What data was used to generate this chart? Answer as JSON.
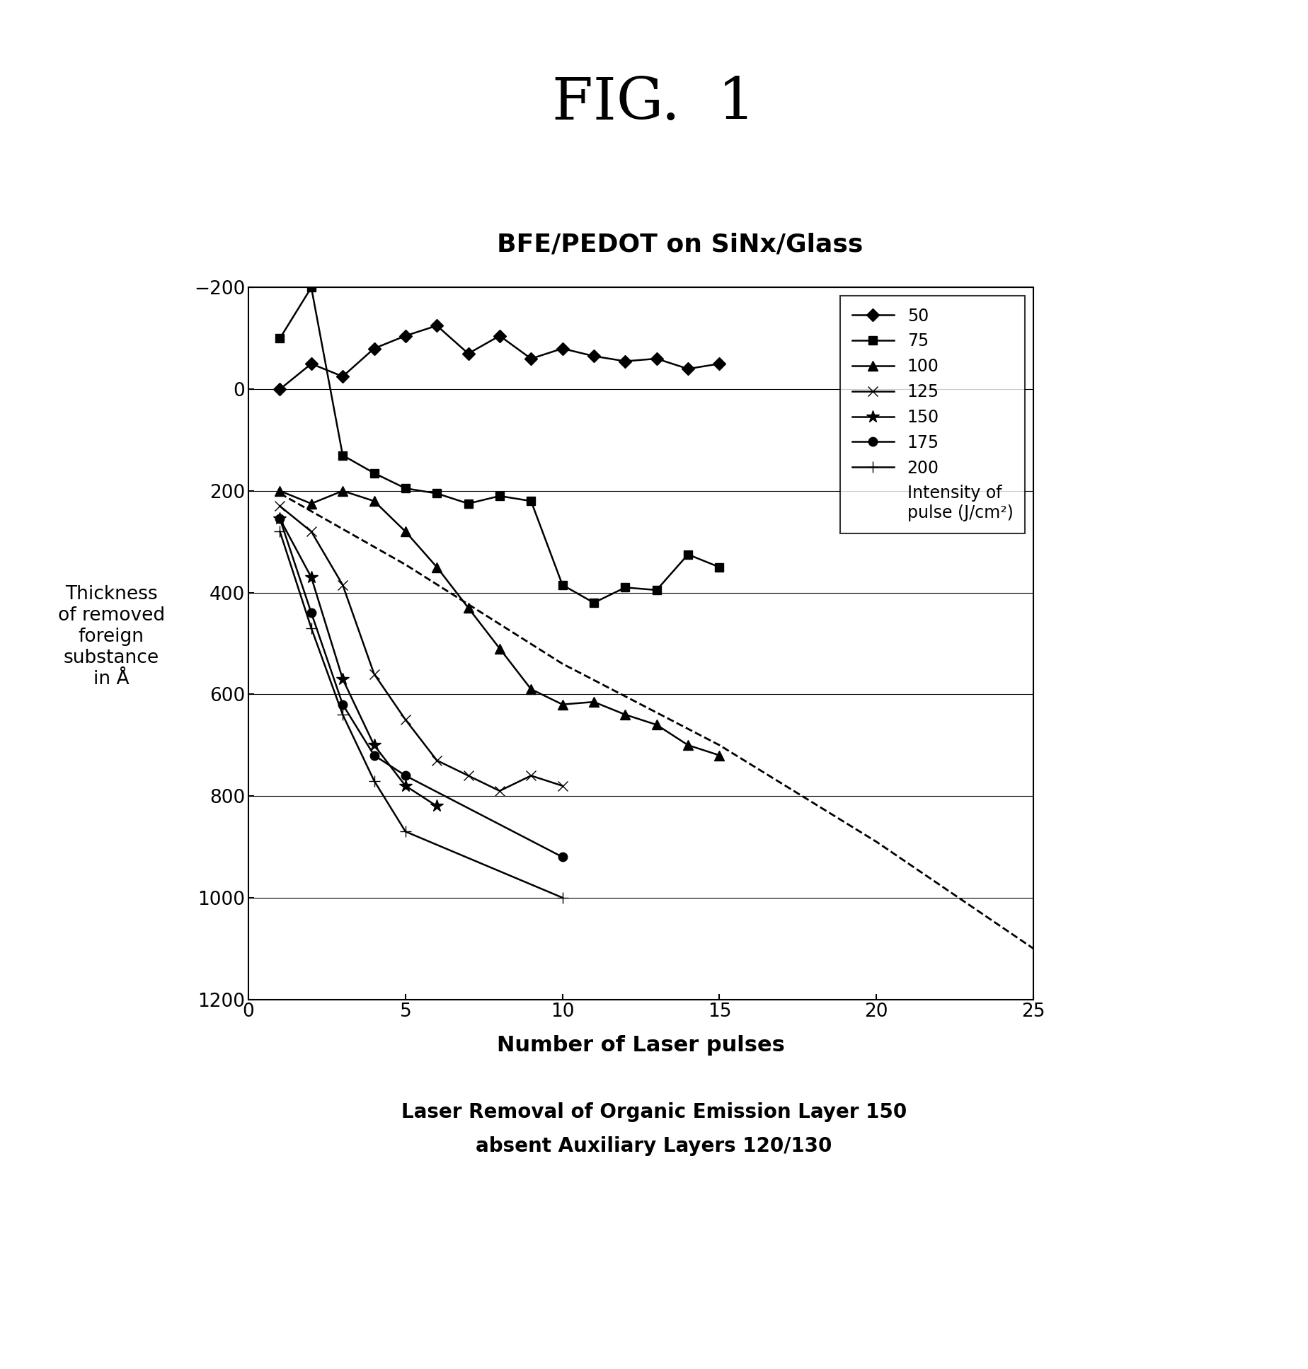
{
  "title_fig": "FIG.  1",
  "title_chart": "BFE/PEDOT on SiNx/Glass",
  "xlabel": "Number of Laser pulses",
  "ylabel": "Thickness\nof removed\nforeign\nsubstance\nin Å",
  "bottom_label1": "Laser Removal of Organic Emission Layer 150",
  "bottom_label2": "absent Auxiliary Layers 120/130",
  "xlim": [
    0,
    25
  ],
  "ylim_bottom": 1200,
  "ylim_top": -200,
  "xticks": [
    0,
    5,
    10,
    15,
    20,
    25
  ],
  "yticks": [
    -200,
    0,
    200,
    400,
    600,
    800,
    1000,
    1200
  ],
  "s50_x": [
    1,
    2,
    3,
    4,
    5,
    6,
    7,
    8,
    9,
    10,
    11,
    12,
    13,
    14,
    15
  ],
  "s50_y": [
    0,
    -50,
    -25,
    -80,
    -105,
    -125,
    -70,
    -105,
    -60,
    -80,
    -65,
    -55,
    -60,
    -40,
    -50
  ],
  "s75_x": [
    1,
    2,
    3,
    4,
    5,
    6,
    7,
    8,
    9,
    10,
    11,
    12,
    13,
    14,
    15
  ],
  "s75_y": [
    -100,
    -200,
    130,
    165,
    195,
    205,
    225,
    210,
    220,
    385,
    420,
    390,
    395,
    325,
    350
  ],
  "s100_x": [
    1,
    2,
    3,
    4,
    5,
    6,
    7,
    8,
    9,
    10,
    11,
    12,
    13,
    14,
    15
  ],
  "s100_y": [
    200,
    225,
    200,
    220,
    280,
    350,
    430,
    510,
    590,
    620,
    615,
    640,
    660,
    700,
    720
  ],
  "s125_x": [
    1,
    2,
    3,
    4,
    5,
    6,
    7,
    8,
    9,
    10
  ],
  "s125_y": [
    230,
    280,
    385,
    560,
    650,
    730,
    760,
    790,
    760,
    780
  ],
  "s150_x": [
    1,
    2,
    3,
    4,
    5,
    6
  ],
  "s150_y": [
    255,
    370,
    570,
    700,
    780,
    820
  ],
  "s175_x": [
    1,
    2,
    3,
    4,
    5,
    10
  ],
  "s175_y": [
    255,
    440,
    620,
    720,
    760,
    920
  ],
  "s200_x": [
    1,
    2,
    3,
    4,
    5,
    10
  ],
  "s200_y": [
    280,
    470,
    640,
    770,
    870,
    1000
  ],
  "dash_x": [
    1,
    5,
    10,
    15,
    20,
    25
  ],
  "dash_y": [
    205,
    345,
    540,
    700,
    890,
    1100
  ],
  "legend_extra": "Intensity of\npulse (J/cm²)",
  "bg": "#ffffff"
}
